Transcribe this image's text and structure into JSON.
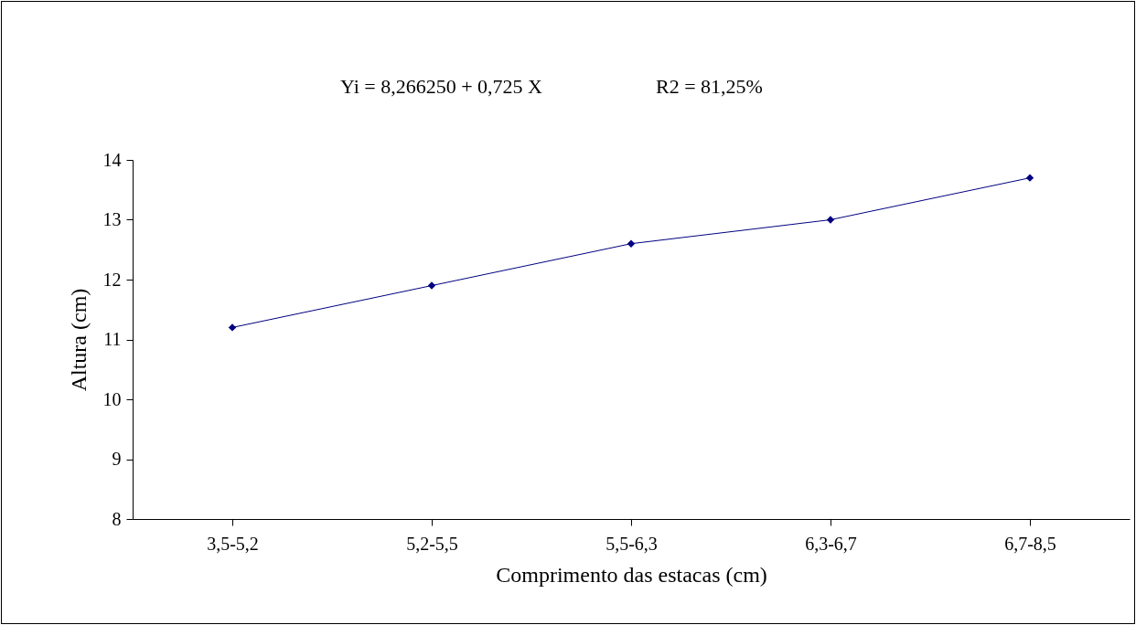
{
  "chart_data": {
    "type": "line",
    "annotations": [
      "Yi = 8,266250 + 0,725 X",
      "R2 = 81,25%"
    ],
    "xlabel": "Comprimento das estacas (cm)",
    "ylabel": "Altura (cm)",
    "categories": [
      "3,5-5,2",
      "5,2-5,5",
      "5,5-6,3",
      "6,3-6,7",
      "6,7-8,5"
    ],
    "series": [
      {
        "color": "#000080",
        "values": [
          11.2,
          11.9,
          12.6,
          13.0,
          13.7
        ]
      }
    ],
    "ylim": [
      8,
      14
    ],
    "yticks": [
      8,
      9,
      10,
      11,
      12,
      13,
      14
    ],
    "grid": false,
    "marker": "diamond",
    "line_style": "solid"
  }
}
